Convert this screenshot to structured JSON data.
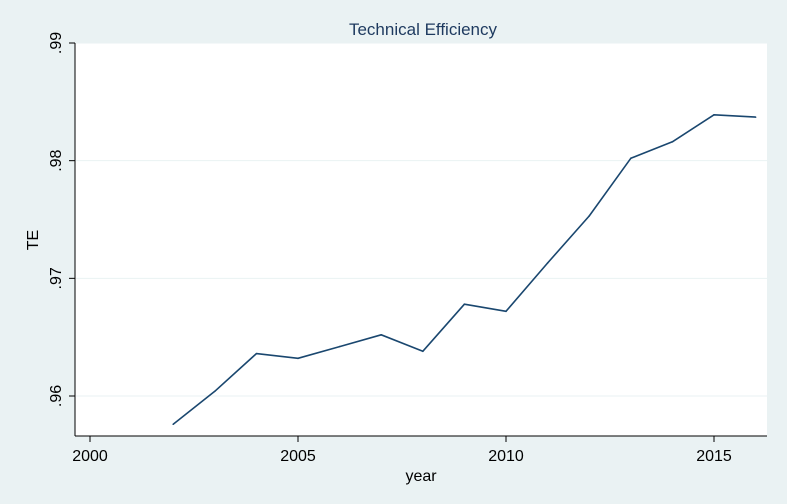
{
  "chart_data": {
    "type": "line",
    "title": "Technical Efficiency",
    "xlabel": "year",
    "ylabel": "TE",
    "x": [
      2002,
      2003,
      2004,
      2005,
      2006,
      2007,
      2008,
      2009,
      2010,
      2011,
      2012,
      2013,
      2014,
      2015,
      2016
    ],
    "series": [
      {
        "values": [
          0.9576,
          0.9604,
          0.9636,
          0.9632,
          0.9642,
          0.9652,
          0.9638,
          0.9678,
          0.9672,
          0.9713,
          0.9753,
          0.9802,
          0.9816,
          0.9839,
          0.9837
        ]
      }
    ],
    "xlim": [
      2000,
      2016.5
    ],
    "ylim": [
      0.9565,
      0.991
    ],
    "xticks": [
      2000,
      2005,
      2010,
      2015
    ],
    "xtick_labels": [
      "2000",
      "2005",
      "2010",
      "2015"
    ],
    "yticks": [
      0.96,
      0.97,
      0.98,
      0.99
    ],
    "ytick_labels": [
      ".96",
      ".97",
      ".98",
      ".99"
    ],
    "grid": true,
    "colors": {
      "background": "#eaf2f3",
      "plot_background": "#ffffff",
      "line": "#1a476f",
      "grid": "#eaf2f3",
      "title": "#1e3a5f"
    }
  }
}
